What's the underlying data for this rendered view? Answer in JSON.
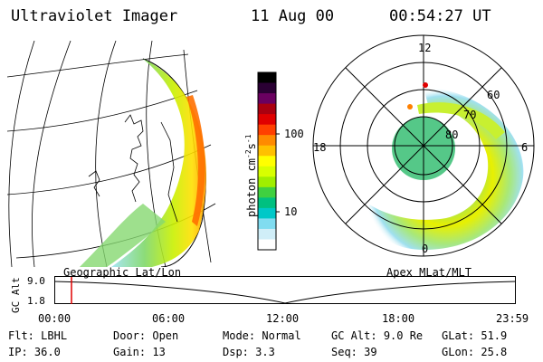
{
  "header": {
    "instrument": "Ultraviolet Imager",
    "date": "11 Aug 00",
    "time": "00:54:27 UT"
  },
  "colorbar": {
    "label": "photon cm",
    "label_sup1": "-2",
    "label_mid": "s",
    "label_sup2": "-1",
    "ticks": [
      "100",
      "10"
    ],
    "colors": [
      "#000000",
      "#2a0033",
      "#6a0060",
      "#aa0010",
      "#e00000",
      "#ff4000",
      "#ff8a00",
      "#ffc000",
      "#ffff00",
      "#d8ff00",
      "#a0ee00",
      "#40d040",
      "#00c080",
      "#00c8c8",
      "#80dcf0",
      "#d0eef8",
      "#ffffff"
    ]
  },
  "left_map": {
    "caption": "Geographic Lat/Lon"
  },
  "polar_plot": {
    "caption": "Apex MLat/MLT",
    "mlt_labels": [
      "12",
      "18",
      "6",
      "0"
    ],
    "mlat_labels": [
      "60",
      "70",
      "80"
    ]
  },
  "altitude_plot": {
    "ylabel": "GC Alt",
    "yticks": [
      "9.0",
      "1.8"
    ],
    "xticks": [
      "00:00",
      "06:00",
      "12:00",
      "18:00",
      "23:59"
    ],
    "marker_time": "00:54"
  },
  "status": {
    "row1": [
      {
        "key": "Flt:",
        "value": "LBHL"
      },
      {
        "key": "Door:",
        "value": "Open"
      },
      {
        "key": "Mode:",
        "value": "Normal"
      },
      {
        "key": "GC Alt:",
        "value": "9.0 Re"
      },
      {
        "key": "GLat:",
        "value": "51.9"
      }
    ],
    "row2": [
      {
        "key": "IP:",
        "value": "36.0"
      },
      {
        "key": "Gain:",
        "value": "13"
      },
      {
        "key": "Dsp:",
        "value": "3.3"
      },
      {
        "key": "Seq:",
        "value": "39"
      },
      {
        "key": "GLon:",
        "value": "25.8"
      }
    ]
  }
}
